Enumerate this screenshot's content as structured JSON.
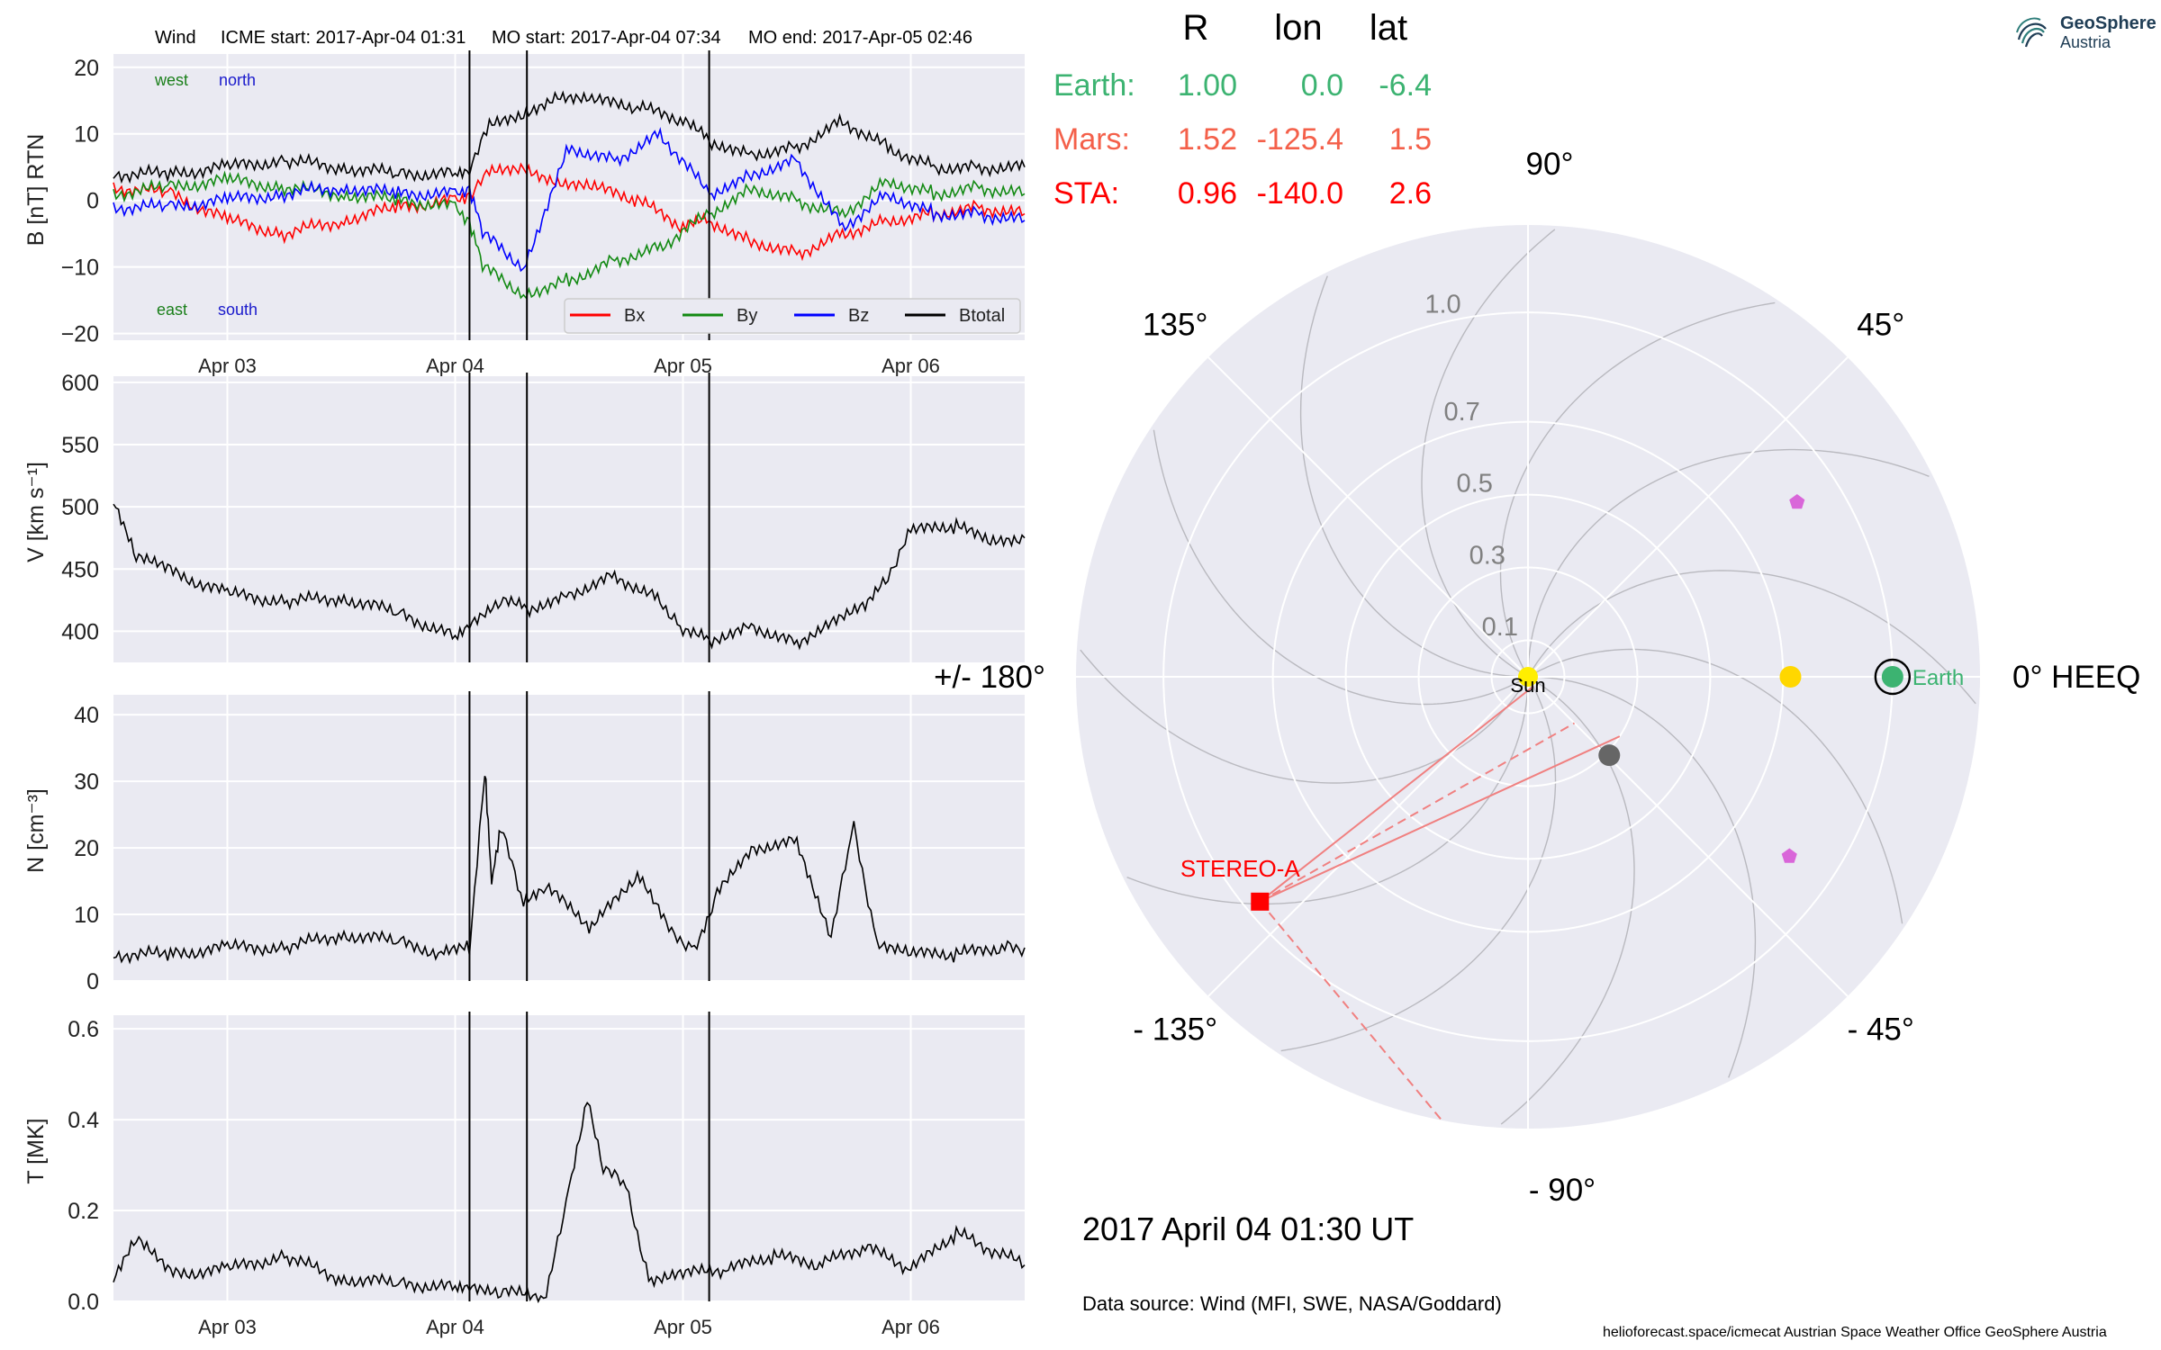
{
  "header": {
    "spacecraft": "Wind",
    "icme_start": "ICME start: 2017-Apr-04 01:31",
    "mo_start": "MO start: 2017-Apr-04 07:34",
    "mo_end": "MO end: 2017-Apr-05 02:46"
  },
  "positions": {
    "headers": [
      "R",
      "lon",
      "lat"
    ],
    "rows": [
      {
        "label": "Earth:",
        "R": "1.00",
        "lon": "0.0",
        "lat": "-6.4",
        "color": "#3cb371"
      },
      {
        "label": "Mars:",
        "R": "1.52",
        "lon": "-125.4",
        "lat": "1.5",
        "color": "#f4604a"
      },
      {
        "label": "STA:",
        "R": "0.96",
        "lon": "-140.0",
        "lat": "2.6",
        "color": "#ff0000"
      }
    ]
  },
  "logo": {
    "name": "GeoSphere",
    "sub": "Austria"
  },
  "date_label": "2017 April 04  01:30 UT",
  "data_source": "Data source: Wind (MFI, SWE, NASA/Goddard)",
  "credits": "helioforecast.space/icmecat   Austrian Space Weather Office   GeoSphere Austria",
  "chart_data": [
    {
      "type": "line",
      "panel": "magnetic-field",
      "ylabel": "B [nT] RTN",
      "ylim": [
        -21,
        22
      ],
      "yticks": [
        -20,
        -10,
        0,
        10,
        20
      ],
      "ytick_labels": [
        "−20",
        "−10",
        "0",
        "10",
        "20"
      ],
      "x_range_days": [
        2.5,
        6.5
      ],
      "xticks": [
        {
          "x": 3,
          "label": "Apr 03"
        },
        {
          "x": 4,
          "label": "Apr 04"
        },
        {
          "x": 5,
          "label": "Apr 05"
        },
        {
          "x": 6,
          "label": "Apr 06"
        }
      ],
      "event_lines_days": [
        4.063,
        4.315,
        5.115
      ],
      "annotations": [
        {
          "text": "west",
          "color": "#1a7f1a"
        },
        {
          "text": "north",
          "color": "#1a1acc"
        },
        {
          "text": "east",
          "color": "#1a7f1a"
        },
        {
          "text": "south",
          "color": "#1a1acc"
        }
      ],
      "legend": "lower right",
      "series": [
        {
          "name": "Bx",
          "color": "#ff0000",
          "x": [
            2.5,
            2.75,
            3.0,
            3.25,
            3.5,
            3.75,
            4.0,
            4.063,
            4.15,
            4.3,
            4.45,
            4.6,
            4.8,
            5.0,
            5.115,
            5.3,
            5.5,
            5.7,
            5.9,
            6.1,
            6.3,
            6.5
          ],
          "y": [
            2,
            1,
            -3,
            -5,
            -3,
            -1,
            0,
            1,
            4,
            5,
            3,
            2,
            0,
            -4,
            -3,
            -6,
            -8,
            -5,
            -3,
            -2,
            -1,
            -2
          ]
        },
        {
          "name": "By",
          "color": "#138a13",
          "x": [
            2.5,
            2.75,
            3.0,
            3.25,
            3.5,
            3.75,
            4.0,
            4.063,
            4.12,
            4.3,
            4.5,
            4.7,
            4.9,
            5.115,
            5.3,
            5.5,
            5.7,
            5.9,
            6.1,
            6.3,
            6.5
          ],
          "y": [
            1,
            2,
            3,
            2,
            1,
            0,
            -1,
            -3,
            -10,
            -14,
            -12,
            -9,
            -7,
            -2,
            2,
            0,
            -2,
            3,
            1,
            2,
            1
          ]
        },
        {
          "name": "Bz",
          "color": "#0000ff",
          "x": [
            2.5,
            2.75,
            3.0,
            3.25,
            3.5,
            3.75,
            4.0,
            4.063,
            4.12,
            4.3,
            4.5,
            4.7,
            4.9,
            5.115,
            5.3,
            5.5,
            5.7,
            5.9,
            6.1,
            6.3,
            6.5
          ],
          "y": [
            -1,
            -1,
            0,
            1,
            2,
            1,
            1,
            2,
            -5,
            -10,
            8,
            6,
            10,
            1,
            4,
            6,
            -4,
            1,
            -2,
            -2,
            -3
          ]
        },
        {
          "name": "Btotal",
          "color": "#000000",
          "x": [
            2.5,
            2.75,
            3.0,
            3.25,
            3.5,
            3.75,
            4.0,
            4.063,
            4.15,
            4.3,
            4.45,
            4.6,
            4.8,
            5.0,
            5.115,
            5.3,
            5.5,
            5.7,
            5.9,
            6.1,
            6.3,
            6.5
          ],
          "y": [
            4,
            4,
            5,
            6,
            5,
            4,
            4,
            5,
            11,
            13,
            16,
            15,
            14,
            12,
            9,
            7,
            8,
            12,
            8,
            5,
            5,
            5
          ]
        }
      ]
    },
    {
      "type": "line",
      "panel": "speed",
      "ylabel": "V [km s⁻¹]",
      "ylim": [
        375,
        605
      ],
      "yticks": [
        400,
        450,
        500,
        550,
        600
      ],
      "ytick_labels": [
        "400",
        "450",
        "500",
        "550",
        "600"
      ],
      "x_range_days": [
        2.5,
        6.5
      ],
      "event_lines_days": [
        4.063,
        4.315,
        5.115
      ],
      "series": [
        {
          "name": "",
          "color": "#000000",
          "x": [
            2.5,
            2.6,
            2.75,
            3.0,
            3.25,
            3.5,
            3.75,
            4.0,
            4.063,
            4.2,
            4.315,
            4.5,
            4.7,
            4.9,
            5.0,
            5.115,
            5.3,
            5.5,
            5.65,
            5.8,
            5.9,
            6.0,
            6.2,
            6.35,
            6.5
          ],
          "y": [
            505,
            460,
            448,
            430,
            424,
            427,
            415,
            395,
            408,
            425,
            418,
            430,
            445,
            425,
            400,
            393,
            405,
            390,
            410,
            420,
            445,
            480,
            485,
            470,
            475
          ]
        }
      ]
    },
    {
      "type": "line",
      "panel": "density",
      "ylabel": "N [cm⁻³]",
      "ylim": [
        0,
        43
      ],
      "yticks": [
        0,
        10,
        20,
        30,
        40
      ],
      "ytick_labels": [
        "0",
        "10",
        "20",
        "30",
        "40"
      ],
      "x_range_days": [
        2.5,
        6.5
      ],
      "event_lines_days": [
        4.063,
        4.315,
        5.115
      ],
      "series": [
        {
          "name": "",
          "color": "#000000",
          "x": [
            2.5,
            2.75,
            3.0,
            3.25,
            3.5,
            3.75,
            3.95,
            4.063,
            4.13,
            4.16,
            4.2,
            4.3,
            4.4,
            4.6,
            4.8,
            4.95,
            5.05,
            5.15,
            5.3,
            5.5,
            5.65,
            5.75,
            5.85,
            6.0,
            6.2,
            6.4,
            6.5
          ],
          "y": [
            4,
            4,
            5,
            5,
            7,
            6,
            4,
            5,
            32,
            15,
            23,
            12,
            14,
            8,
            16,
            7,
            5,
            13,
            20,
            21,
            7,
            23,
            6,
            4,
            4,
            5,
            5
          ]
        }
      ]
    },
    {
      "type": "line",
      "panel": "temperature",
      "ylabel": "T [MK]",
      "ylim": [
        0,
        0.63
      ],
      "yticks": [
        0.0,
        0.2,
        0.4,
        0.6
      ],
      "ytick_labels": [
        "0.0",
        "0.2",
        "0.4",
        "0.6"
      ],
      "x_range_days": [
        2.5,
        6.5
      ],
      "xticks": [
        {
          "x": 3,
          "label": "Apr 03"
        },
        {
          "x": 4,
          "label": "Apr 04"
        },
        {
          "x": 5,
          "label": "Apr 05"
        },
        {
          "x": 6,
          "label": "Apr 06"
        }
      ],
      "event_lines_days": [
        4.063,
        4.315,
        5.115
      ],
      "series": [
        {
          "name": "",
          "color": "#000000",
          "x": [
            2.5,
            2.6,
            2.75,
            3.0,
            3.25,
            3.5,
            3.75,
            4.0,
            4.063,
            4.2,
            4.4,
            4.5,
            4.58,
            4.65,
            4.75,
            4.85,
            5.0,
            5.2,
            5.4,
            5.6,
            5.8,
            6.0,
            6.2,
            6.5
          ],
          "y": [
            0.05,
            0.14,
            0.06,
            0.07,
            0.1,
            0.05,
            0.04,
            0.03,
            0.04,
            0.02,
            0.01,
            0.25,
            0.45,
            0.3,
            0.25,
            0.05,
            0.06,
            0.07,
            0.1,
            0.08,
            0.12,
            0.07,
            0.15,
            0.08
          ]
        }
      ]
    },
    {
      "type": "scatter",
      "panel": "polar-positions",
      "title": "",
      "angle_labels": [
        {
          "deg": 0,
          "text": "0° HEEQ"
        },
        {
          "deg": 45,
          "text": "45°"
        },
        {
          "deg": 90,
          "text": "90°"
        },
        {
          "deg": 135,
          "text": "135°"
        },
        {
          "deg": 180,
          "text": "+/- 180°"
        },
        {
          "deg": -135,
          "text": "- 135°"
        },
        {
          "deg": -90,
          "text": "- 90°"
        },
        {
          "deg": -45,
          "text": "- 45°"
        }
      ],
      "radial_ticks": [
        {
          "r": 0.1,
          "label": "0.1"
        },
        {
          "r": 0.3,
          "label": "0.3"
        },
        {
          "r": 0.5,
          "label": "0.5"
        },
        {
          "r": 0.7,
          "label": "0.7"
        },
        {
          "r": 1.0,
          "label": "1.0"
        }
      ],
      "r_max": 1.24,
      "objects": [
        {
          "name": "Sun",
          "r": 0.0,
          "lon": 0,
          "color": "#ffee00",
          "marker": "circle",
          "label": "Sun"
        },
        {
          "name": "Earth",
          "r": 1.0,
          "lon": 0.0,
          "color": "#3cb371",
          "marker": "circle",
          "label": "Earth"
        },
        {
          "name": "STEREO-A",
          "r": 0.96,
          "lon": -140.0,
          "color": "#ff0000",
          "marker": "square",
          "label": "STEREO-A"
        },
        {
          "name": "Venus",
          "r": 0.72,
          "lon": 0.0,
          "color": "#ffd700",
          "marker": "circle",
          "label": ""
        },
        {
          "name": "Mercury",
          "r": 0.31,
          "lon": -44.0,
          "color": "#666666",
          "marker": "circle",
          "label": ""
        },
        {
          "name": "PSP-1",
          "r": 0.88,
          "lon": 33.0,
          "color": "#d966d9",
          "marker": "pentagon",
          "label": ""
        },
        {
          "name": "PSP-2",
          "r": 0.87,
          "lon": -34.5,
          "color": "#d966d9",
          "marker": "pentagon",
          "label": ""
        }
      ]
    }
  ]
}
